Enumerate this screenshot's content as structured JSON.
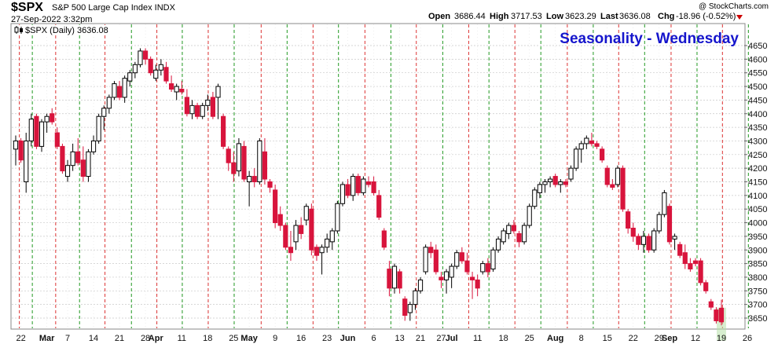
{
  "header": {
    "symbol": "$SPX",
    "description": "S&P 500 Large Cap Index INDX",
    "date_time": "27-Sep-2022 3:32pm",
    "open_label": "Open",
    "open_value": "3686.44",
    "high_label": "High",
    "high_value": "3717.53",
    "low_label": "Low",
    "low_value": "3623.29",
    "last_label": "Last",
    "last_value": "3636.08",
    "chg_label": "Chg",
    "chg_value": "-18.96 (-0.52%)",
    "watermark": "@ StockCharts.com",
    "legend": "$SPX (Daily) 3636.08",
    "overlay_title": "Seasonality - Wednesday"
  },
  "colors": {
    "up": "#ffffff",
    "down": "#d8143c",
    "down_hollow": "#d8143c",
    "red_line": "#dd3333",
    "green_line": "#229922",
    "grid": "#c8c8c8",
    "title": "#1515cc",
    "chg": "#cc0000"
  },
  "chart_data": {
    "type": "candlestick",
    "title": "Seasonality - Wednesday",
    "series_name": "$SPX (Daily)",
    "ylim": [
      3600,
      4670
    ],
    "y_ticks": [
      3650,
      3700,
      3750,
      3800,
      3850,
      3900,
      3950,
      4000,
      4050,
      4100,
      4150,
      4200,
      4250,
      4300,
      4350,
      4400,
      4450,
      4500,
      4550,
      4600,
      4650
    ],
    "x_tick_labels": [
      "22",
      "Mar",
      "7",
      "14",
      "21",
      "28",
      "Apr",
      "11",
      "18",
      "25",
      "May",
      "9",
      "16",
      "23",
      "Jun",
      "6",
      "13",
      "21",
      "27",
      "Jul",
      "11",
      "18",
      "25",
      "Aug",
      "8",
      "15",
      "22",
      "29",
      "Sep",
      "12",
      "19",
      "26"
    ],
    "x_tick_bold": [
      "Mar",
      "Apr",
      "May",
      "Jun",
      "Jul",
      "Aug",
      "Sep"
    ],
    "x_tick_index": [
      1,
      6,
      10,
      15,
      20,
      25,
      27,
      32,
      37,
      42,
      45,
      50,
      55,
      60,
      64,
      69,
      74,
      78,
      82,
      84,
      89,
      94,
      99,
      104,
      109,
      114,
      119,
      124,
      126,
      131,
      136,
      141
    ],
    "vertical_lines": [
      {
        "i": 0.7,
        "c": "red"
      },
      {
        "i": 3.2,
        "c": "green"
      },
      {
        "i": 7.7,
        "c": "red"
      },
      {
        "i": 12.3,
        "c": "green"
      },
      {
        "i": 17.2,
        "c": "red"
      },
      {
        "i": 22.3,
        "c": "green"
      },
      {
        "i": 27.2,
        "c": "red"
      },
      {
        "i": 32.1,
        "c": "green"
      },
      {
        "i": 37.1,
        "c": "red"
      },
      {
        "i": 42.1,
        "c": "green"
      },
      {
        "i": 47.3,
        "c": "red"
      },
      {
        "i": 52.3,
        "c": "green"
      },
      {
        "i": 57.3,
        "c": "red"
      },
      {
        "i": 62.2,
        "c": "green"
      },
      {
        "i": 67.3,
        "c": "red"
      },
      {
        "i": 72.3,
        "c": "green"
      },
      {
        "i": 77.2,
        "c": "red"
      },
      {
        "i": 82.3,
        "c": "green"
      },
      {
        "i": 87.3,
        "c": "red"
      },
      {
        "i": 91.2,
        "c": "green"
      },
      {
        "i": 96.2,
        "c": "red"
      },
      {
        "i": 101.2,
        "c": "green"
      },
      {
        "i": 106.3,
        "c": "red"
      },
      {
        "i": 111.3,
        "c": "green"
      },
      {
        "i": 116.2,
        "c": "red"
      },
      {
        "i": 121.2,
        "c": "green"
      },
      {
        "i": 126.3,
        "c": "red"
      },
      {
        "i": 131.3,
        "c": "green"
      },
      {
        "i": 136.2,
        "c": "red"
      },
      {
        "i": 141.2,
        "c": "green"
      }
    ],
    "candles": [
      {
        "i": 0,
        "o": 4270,
        "h": 4320,
        "l": 4210,
        "c": 4300
      },
      {
        "i": 1,
        "o": 4300,
        "h": 4310,
        "l": 4220,
        "c": 4230
      },
      {
        "i": 2,
        "o": 4150,
        "h": 4330,
        "l": 4110,
        "c": 4300
      },
      {
        "i": 3,
        "o": 4300,
        "h": 4400,
        "l": 4280,
        "c": 4380
      },
      {
        "i": 4,
        "o": 4390,
        "h": 4400,
        "l": 4270,
        "c": 4280
      },
      {
        "i": 5,
        "o": 4280,
        "h": 4380,
        "l": 4260,
        "c": 4370
      },
      {
        "i": 6,
        "o": 4370,
        "h": 4400,
        "l": 4330,
        "c": 4390
      },
      {
        "i": 7,
        "o": 4400,
        "h": 4420,
        "l": 4360,
        "c": 4370
      },
      {
        "i": 8,
        "o": 4330,
        "h": 4350,
        "l": 4270,
        "c": 4280
      },
      {
        "i": 9,
        "o": 4280,
        "h": 4290,
        "l": 4180,
        "c": 4190
      },
      {
        "i": 10,
        "o": 4170,
        "h": 4230,
        "l": 4150,
        "c": 4210
      },
      {
        "i": 11,
        "o": 4210,
        "h": 4290,
        "l": 4190,
        "c": 4260
      },
      {
        "i": 12,
        "o": 4260,
        "h": 4310,
        "l": 4210,
        "c": 4220
      },
      {
        "i": 13,
        "o": 4230,
        "h": 4280,
        "l": 4150,
        "c": 4170
      },
      {
        "i": 14,
        "o": 4170,
        "h": 4270,
        "l": 4150,
        "c": 4260
      },
      {
        "i": 15,
        "o": 4260,
        "h": 4320,
        "l": 4250,
        "c": 4300
      },
      {
        "i": 16,
        "o": 4300,
        "h": 4400,
        "l": 4290,
        "c": 4390
      },
      {
        "i": 17,
        "o": 4390,
        "h": 4430,
        "l": 4340,
        "c": 4420
      },
      {
        "i": 18,
        "o": 4420,
        "h": 4470,
        "l": 4400,
        "c": 4460
      },
      {
        "i": 19,
        "o": 4460,
        "h": 4520,
        "l": 4450,
        "c": 4510
      },
      {
        "i": 20,
        "o": 4500,
        "h": 4520,
        "l": 4450,
        "c": 4460
      },
      {
        "i": 21,
        "o": 4460,
        "h": 4540,
        "l": 4440,
        "c": 4530
      },
      {
        "i": 22,
        "o": 4520,
        "h": 4560,
        "l": 4500,
        "c": 4550
      },
      {
        "i": 23,
        "o": 4550,
        "h": 4590,
        "l": 4530,
        "c": 4580
      },
      {
        "i": 24,
        "o": 4580,
        "h": 4640,
        "l": 4570,
        "c": 4630
      },
      {
        "i": 25,
        "o": 4630,
        "h": 4640,
        "l": 4580,
        "c": 4600
      },
      {
        "i": 26,
        "o": 4600,
        "h": 4610,
        "l": 4540,
        "c": 4550
      },
      {
        "i": 27,
        "o": 4530,
        "h": 4580,
        "l": 4520,
        "c": 4560
      },
      {
        "i": 28,
        "o": 4560,
        "h": 4600,
        "l": 4540,
        "c": 4580
      },
      {
        "i": 29,
        "o": 4570,
        "h": 4590,
        "l": 4510,
        "c": 4520
      },
      {
        "i": 30,
        "o": 4510,
        "h": 4540,
        "l": 4480,
        "c": 4490
      },
      {
        "i": 31,
        "o": 4480,
        "h": 4510,
        "l": 4450,
        "c": 4500
      },
      {
        "i": 32,
        "o": 4490,
        "h": 4520,
        "l": 4470,
        "c": 4480
      },
      {
        "i": 33,
        "o": 4460,
        "h": 4490,
        "l": 4390,
        "c": 4400
      },
      {
        "i": 34,
        "o": 4400,
        "h": 4450,
        "l": 4380,
        "c": 4430
      },
      {
        "i": 35,
        "o": 4430,
        "h": 4440,
        "l": 4380,
        "c": 4390
      },
      {
        "i": 36,
        "o": 4390,
        "h": 4440,
        "l": 4380,
        "c": 4430
      },
      {
        "i": 37,
        "o": 4430,
        "h": 4470,
        "l": 4410,
        "c": 4450
      },
      {
        "i": 38,
        "o": 4460,
        "h": 4480,
        "l": 4380,
        "c": 4390
      },
      {
        "i": 39,
        "o": 4460,
        "h": 4510,
        "l": 4380,
        "c": 4500
      },
      {
        "i": 40,
        "o": 4390,
        "h": 4400,
        "l": 4270,
        "c": 4280
      },
      {
        "i": 41,
        "o": 4270,
        "h": 4280,
        "l": 4190,
        "c": 4220
      },
      {
        "i": 42,
        "o": 4220,
        "h": 4260,
        "l": 4150,
        "c": 4180
      },
      {
        "i": 43,
        "o": 4190,
        "h": 4310,
        "l": 4170,
        "c": 4290
      },
      {
        "i": 44,
        "o": 4280,
        "h": 4300,
        "l": 4150,
        "c": 4160
      },
      {
        "i": 45,
        "o": 4150,
        "h": 4190,
        "l": 4060,
        "c": 4170
      },
      {
        "i": 46,
        "o": 4170,
        "h": 4200,
        "l": 4130,
        "c": 4150
      },
      {
        "i": 47,
        "o": 4150,
        "h": 4310,
        "l": 4140,
        "c": 4300
      },
      {
        "i": 48,
        "o": 4260,
        "h": 4310,
        "l": 4140,
        "c": 4160
      },
      {
        "i": 49,
        "o": 4150,
        "h": 4160,
        "l": 4110,
        "c": 4130
      },
      {
        "i": 50,
        "o": 4120,
        "h": 4140,
        "l": 3980,
        "c": 4000
      },
      {
        "i": 51,
        "o": 4030,
        "h": 4060,
        "l": 3970,
        "c": 3990
      },
      {
        "i": 52,
        "o": 3990,
        "h": 4000,
        "l": 3900,
        "c": 3910
      },
      {
        "i": 53,
        "o": 3910,
        "h": 3970,
        "l": 3860,
        "c": 3890
      },
      {
        "i": 54,
        "o": 3930,
        "h": 4010,
        "l": 3900,
        "c": 3990
      },
      {
        "i": 55,
        "o": 3990,
        "h": 4020,
        "l": 3940,
        "c": 3960
      },
      {
        "i": 56,
        "o": 4010,
        "h": 4070,
        "l": 3990,
        "c": 4060
      },
      {
        "i": 57,
        "o": 4050,
        "h": 4070,
        "l": 3880,
        "c": 3900
      },
      {
        "i": 58,
        "o": 3910,
        "h": 3920,
        "l": 3860,
        "c": 3880
      },
      {
        "i": 59,
        "o": 3890,
        "h": 3920,
        "l": 3810,
        "c": 3910
      },
      {
        "i": 60,
        "o": 3910,
        "h": 3960,
        "l": 3890,
        "c": 3940
      },
      {
        "i": 61,
        "o": 3930,
        "h": 3980,
        "l": 3900,
        "c": 3970
      },
      {
        "i": 62,
        "o": 3970,
        "h": 4080,
        "l": 3960,
        "c": 4070
      },
      {
        "i": 63,
        "o": 4070,
        "h": 4150,
        "l": 4060,
        "c": 4140
      },
      {
        "i": 64,
        "o": 4140,
        "h": 4160,
        "l": 4090,
        "c": 4100
      },
      {
        "i": 65,
        "o": 4100,
        "h": 4180,
        "l": 4080,
        "c": 4170
      },
      {
        "i": 66,
        "o": 4170,
        "h": 4180,
        "l": 4100,
        "c": 4110
      },
      {
        "i": 67,
        "o": 4110,
        "h": 4170,
        "l": 4100,
        "c": 4160
      },
      {
        "i": 68,
        "o": 4150,
        "h": 4170,
        "l": 4130,
        "c": 4140
      },
      {
        "i": 69,
        "o": 4150,
        "h": 4170,
        "l": 4100,
        "c": 4110
      },
      {
        "i": 70,
        "o": 4100,
        "h": 4120,
        "l": 4010,
        "c": 4020
      },
      {
        "i": 71,
        "o": 3970,
        "h": 3980,
        "l": 3900,
        "c": 3910
      },
      {
        "i": 72,
        "o": 3830,
        "h": 3860,
        "l": 3730,
        "c": 3760
      },
      {
        "i": 73,
        "o": 3760,
        "h": 3850,
        "l": 3740,
        "c": 3840
      },
      {
        "i": 74,
        "o": 3820,
        "h": 3830,
        "l": 3740,
        "c": 3760
      },
      {
        "i": 75,
        "o": 3720,
        "h": 3730,
        "l": 3640,
        "c": 3660
      },
      {
        "i": 76,
        "o": 3670,
        "h": 3710,
        "l": 3640,
        "c": 3700
      },
      {
        "i": 77,
        "o": 3700,
        "h": 3760,
        "l": 3680,
        "c": 3750
      },
      {
        "i": 78,
        "o": 3750,
        "h": 3800,
        "l": 3740,
        "c": 3790
      },
      {
        "i": 79,
        "o": 3820,
        "h": 3920,
        "l": 3810,
        "c": 3910
      },
      {
        "i": 80,
        "o": 3910,
        "h": 3930,
        "l": 3870,
        "c": 3890
      },
      {
        "i": 81,
        "o": 3900,
        "h": 3920,
        "l": 3810,
        "c": 3820
      },
      {
        "i": 82,
        "o": 3800,
        "h": 3820,
        "l": 3760,
        "c": 3790
      },
      {
        "i": 83,
        "o": 3790,
        "h": 3830,
        "l": 3740,
        "c": 3820
      },
      {
        "i": 84,
        "o": 3800,
        "h": 3850,
        "l": 3760,
        "c": 3840
      },
      {
        "i": 85,
        "o": 3840,
        "h": 3900,
        "l": 3830,
        "c": 3890
      },
      {
        "i": 86,
        "o": 3890,
        "h": 3910,
        "l": 3850,
        "c": 3860
      },
      {
        "i": 87,
        "o": 3860,
        "h": 3890,
        "l": 3810,
        "c": 3820
      },
      {
        "i": 88,
        "o": 3800,
        "h": 3820,
        "l": 3720,
        "c": 3790
      },
      {
        "i": 89,
        "o": 3790,
        "h": 3810,
        "l": 3730,
        "c": 3760
      },
      {
        "i": 90,
        "o": 3820,
        "h": 3860,
        "l": 3810,
        "c": 3850
      },
      {
        "i": 91,
        "o": 3850,
        "h": 3870,
        "l": 3800,
        "c": 3820
      },
      {
        "i": 92,
        "o": 3830,
        "h": 3910,
        "l": 3820,
        "c": 3900
      },
      {
        "i": 93,
        "o": 3900,
        "h": 3950,
        "l": 3890,
        "c": 3940
      },
      {
        "i": 94,
        "o": 3930,
        "h": 3980,
        "l": 3920,
        "c": 3970
      },
      {
        "i": 95,
        "o": 3960,
        "h": 4000,
        "l": 3940,
        "c": 3990
      },
      {
        "i": 96,
        "o": 3990,
        "h": 4010,
        "l": 3960,
        "c": 3970
      },
      {
        "i": 97,
        "o": 3960,
        "h": 3970,
        "l": 3910,
        "c": 3930
      },
      {
        "i": 98,
        "o": 3930,
        "h": 4000,
        "l": 3920,
        "c": 3990
      },
      {
        "i": 99,
        "o": 3990,
        "h": 4070,
        "l": 3980,
        "c": 4060
      },
      {
        "i": 100,
        "o": 4060,
        "h": 4130,
        "l": 4050,
        "c": 4120
      },
      {
        "i": 101,
        "o": 4110,
        "h": 4150,
        "l": 4090,
        "c": 4140
      },
      {
        "i": 102,
        "o": 4140,
        "h": 4160,
        "l": 4110,
        "c": 4150
      },
      {
        "i": 103,
        "o": 4150,
        "h": 4170,
        "l": 4130,
        "c": 4160
      },
      {
        "i": 104,
        "o": 4170,
        "h": 4180,
        "l": 4130,
        "c": 4140
      },
      {
        "i": 105,
        "o": 4140,
        "h": 4160,
        "l": 4110,
        "c": 4150
      },
      {
        "i": 106,
        "o": 4150,
        "h": 4160,
        "l": 4130,
        "c": 4140
      },
      {
        "i": 107,
        "o": 4160,
        "h": 4210,
        "l": 4150,
        "c": 4200
      },
      {
        "i": 108,
        "o": 4200,
        "h": 4280,
        "l": 4190,
        "c": 4270
      },
      {
        "i": 109,
        "o": 4270,
        "h": 4300,
        "l": 4220,
        "c": 4290
      },
      {
        "i": 110,
        "o": 4290,
        "h": 4320,
        "l": 4270,
        "c": 4310
      },
      {
        "i": 111,
        "o": 4300,
        "h": 4330,
        "l": 4280,
        "c": 4290
      },
      {
        "i": 112,
        "o": 4290,
        "h": 4300,
        "l": 4270,
        "c": 4280
      },
      {
        "i": 113,
        "o": 4270,
        "h": 4280,
        "l": 4220,
        "c": 4230
      },
      {
        "i": 114,
        "o": 4200,
        "h": 4210,
        "l": 4130,
        "c": 4140
      },
      {
        "i": 115,
        "o": 4140,
        "h": 4160,
        "l": 4120,
        "c": 4130
      },
      {
        "i": 116,
        "o": 4140,
        "h": 4210,
        "l": 4130,
        "c": 4200
      },
      {
        "i": 117,
        "o": 4200,
        "h": 4210,
        "l": 4040,
        "c": 4050
      },
      {
        "i": 118,
        "o": 4040,
        "h": 4050,
        "l": 3960,
        "c": 3980
      },
      {
        "i": 119,
        "o": 3980,
        "h": 4000,
        "l": 3930,
        "c": 3950
      },
      {
        "i": 120,
        "o": 3950,
        "h": 3960,
        "l": 3900,
        "c": 3920
      },
      {
        "i": 121,
        "o": 3920,
        "h": 3970,
        "l": 3890,
        "c": 3950
      },
      {
        "i": 122,
        "o": 3950,
        "h": 3960,
        "l": 3890,
        "c": 3900
      },
      {
        "i": 123,
        "o": 3900,
        "h": 3980,
        "l": 3890,
        "c": 3970
      },
      {
        "i": 124,
        "o": 3970,
        "h": 4040,
        "l": 3960,
        "c": 4030
      },
      {
        "i": 125,
        "o": 4030,
        "h": 4120,
        "l": 4020,
        "c": 4110
      },
      {
        "i": 126,
        "o": 4060,
        "h": 4070,
        "l": 3920,
        "c": 3930
      },
      {
        "i": 127,
        "o": 3940,
        "h": 3960,
        "l": 3900,
        "c": 3950
      },
      {
        "i": 128,
        "o": 3920,
        "h": 3930,
        "l": 3870,
        "c": 3880
      },
      {
        "i": 129,
        "o": 3890,
        "h": 3920,
        "l": 3830,
        "c": 3850
      },
      {
        "i": 130,
        "o": 3850,
        "h": 3870,
        "l": 3820,
        "c": 3830
      },
      {
        "i": 131,
        "o": 3860,
        "h": 3870,
        "l": 3840,
        "c": 3850
      },
      {
        "i": 132,
        "o": 3860,
        "h": 3870,
        "l": 3770,
        "c": 3780
      },
      {
        "i": 133,
        "o": 3780,
        "h": 3790,
        "l": 3740,
        "c": 3750
      },
      {
        "i": 134,
        "o": 3710,
        "h": 3720,
        "l": 3680,
        "c": 3690
      },
      {
        "i": 135,
        "o": 3680,
        "h": 3690,
        "l": 3630,
        "c": 3640
      },
      {
        "i": 136,
        "o": 3686.44,
        "h": 3717.53,
        "l": 3623.29,
        "c": 3636.08
      }
    ]
  }
}
